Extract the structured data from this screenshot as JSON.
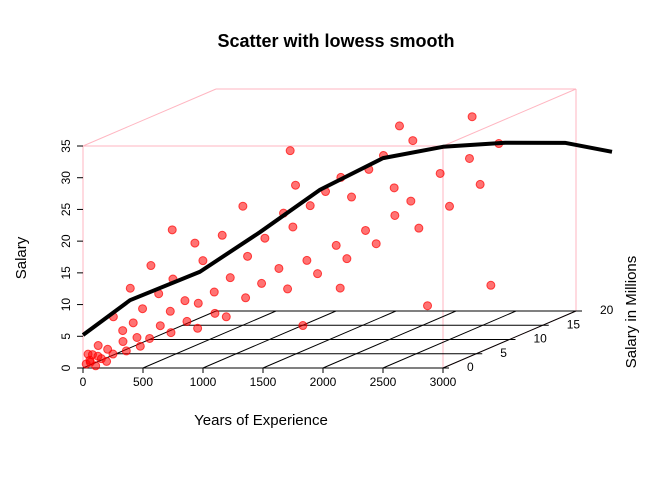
{
  "chart_data": {
    "type": "scatter3d",
    "title": "Scatter with lowess smooth",
    "x_label": "Years of Experience",
    "y_label": "Salary",
    "z_label": "Salary in Millions",
    "xlim": [
      0,
      3000
    ],
    "xticks": [
      0,
      500,
      1000,
      1500,
      2000,
      2500,
      3000
    ],
    "ylim": [
      0,
      35
    ],
    "yticks": [
      0,
      5,
      10,
      15,
      20,
      25,
      30,
      35
    ],
    "zlim": [
      0,
      20
    ],
    "zticks": [
      0,
      5,
      10,
      15,
      20
    ],
    "box_color": "#ffb6c1",
    "grid_color": "#000000",
    "points": {
      "color": "#ff0000",
      "x": [
        10,
        30,
        50,
        80,
        20,
        120,
        150,
        60,
        200,
        250,
        100,
        180,
        300,
        40,
        350,
        400,
        220,
        280,
        450,
        500,
        120,
        330,
        600,
        550,
        700,
        650,
        420,
        800,
        750,
        200,
        900,
        500,
        850,
        1000,
        300,
        950,
        1100,
        700,
        1200,
        600,
        1050,
        1300,
        800,
        1400,
        1150,
        1500,
        400,
        1350,
        1600,
        1250,
        1700,
        900,
        1450,
        1800,
        1550,
        1900,
        1650,
        2000,
        1750,
        2100,
        1850,
        1300,
        2200,
        1950,
        2300,
        2050,
        2400,
        2150,
        2500,
        2600,
        2000,
        2700,
        2800,
        2550,
        1200,
        2900,
        1700,
        1500,
        2400
      ],
      "y": [
        0.5,
        1,
        0.8,
        1.5,
        2,
        1.2,
        2.5,
        3,
        1.8,
        3.5,
        0.3,
        0.9,
        2.2,
        1.8,
        4,
        2.8,
        5,
        6,
        3.8,
        5.5,
        7,
        8,
        4.5,
        7.5,
        6,
        9,
        10,
        5,
        8.5,
        11,
        7,
        12,
        10,
        6.5,
        14,
        12,
        9,
        14.5,
        11,
        17,
        15,
        13,
        18,
        10,
        17.5,
        14,
        19,
        19,
        12,
        21,
        16,
        22,
        22,
        14,
        24,
        18,
        26,
        16,
        23,
        20,
        27,
        25,
        22,
        29,
        18,
        24,
        26,
        31,
        21,
        28,
        33,
        24,
        30,
        34,
        30,
        9,
        9,
        4,
        6
      ],
      "z": [
        0.3,
        0.5,
        0.2,
        0.8,
        0.4,
        0.6,
        1,
        1.2,
        0.9,
        1.5,
        0.1,
        0.3,
        1.1,
        0.7,
        1.8,
        1.4,
        2,
        2.5,
        1.9,
        2.6,
        2.4,
        3,
        2.4,
        3.2,
        3,
        3.6,
        3.8,
        2.8,
        3.8,
        3.5,
        3.6,
        4.5,
        4.4,
        3.5,
        4.8,
        5,
        4.6,
        5.4,
        5.2,
        6,
        5.8,
        6,
        6.5,
        5.5,
        6.6,
        6.6,
        6.2,
        7.2,
        6.4,
        7.6,
        7.4,
        7.8,
        8,
        7.2,
        8.5,
        8.2,
        9,
        8,
        8.8,
        9,
        9.6,
        8.5,
        9.6,
        10,
        9,
        9.8,
        10.4,
        10.8,
        10,
        11.2,
        11.5,
        11,
        12,
        12.5,
        9.5,
        9,
        8,
        6,
        8.5
      ]
    },
    "smooth": {
      "color": "#000000",
      "x": [
        0,
        270,
        731,
        1103,
        1482,
        1885,
        2263,
        2652,
        3030,
        3300
      ],
      "y": [
        5.2,
        9.7,
        13.2,
        18.4,
        24.1,
        28.1,
        28.9,
        28.5,
        27.5,
        25.1
      ],
      "z": [
        0,
        2.2,
        4.4,
        6.7,
        8.9,
        11.1,
        13.3,
        15.6,
        17.8,
        20
      ]
    }
  }
}
